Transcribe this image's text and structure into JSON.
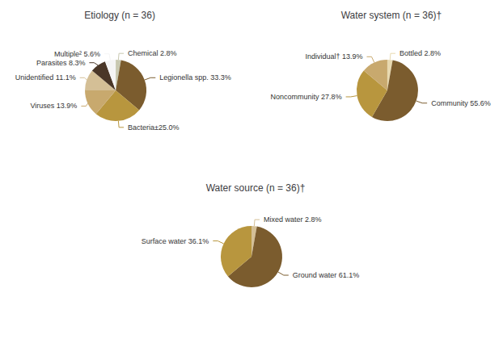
{
  "chart_data": [
    {
      "type": "pie",
      "title": "Etiology (n = 36)",
      "values": [
        2.8,
        33.3,
        25.0,
        13.9,
        11.1,
        8.3,
        5.6
      ],
      "value_labels": [
        "Chemical 2.8%",
        "Legionella spp. 33.3%",
        "Bacteria±25.0%",
        "Viruses 13.9%",
        "Unidentified 11.1%",
        "Parasites 8.3%",
        "Multiple² 5.6%"
      ],
      "colors": [
        "#c8c8b0",
        "#7b5c2e",
        "#b8963e",
        "#c8a96e",
        "#d4bf96",
        "#4a3728",
        "#f5f5f5"
      ]
    },
    {
      "type": "pie",
      "title": "Water system (n = 36)†",
      "values": [
        2.8,
        55.6,
        27.8,
        13.9
      ],
      "value_labels": [
        "Bottled 2.8%",
        "Community 55.6%",
        "Noncommunity 27.8%",
        "Individual† 13.9%"
      ],
      "colors": [
        "#e8d9b0",
        "#7b5c2e",
        "#b8963e",
        "#c8a96e"
      ]
    },
    {
      "type": "pie",
      "title": "Water source (n = 36)†",
      "values": [
        2.8,
        61.1,
        36.1
      ],
      "value_labels": [
        "Mixed water 2.8%",
        "Ground water 61.1%",
        "Surface water 36.1%"
      ],
      "colors": [
        "#d4bf96",
        "#7b5c2e",
        "#b8963e"
      ]
    }
  ]
}
